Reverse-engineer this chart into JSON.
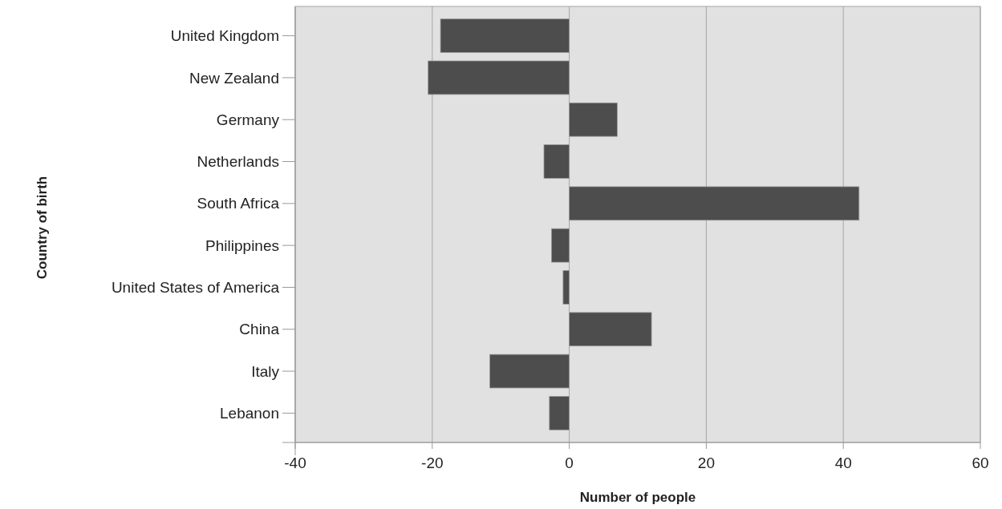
{
  "chart_data": {
    "type": "bar",
    "orientation": "horizontal",
    "xlabel": "Number of people",
    "ylabel": "Country of birth",
    "categories": [
      "United Kingdom",
      "New Zealand",
      "Germany",
      "Netherlands",
      "South Africa",
      "Philippines",
      "United States of America",
      "China",
      "Italy",
      "Lebanon"
    ],
    "values": [
      -18.8,
      -20.6,
      7,
      -3.7,
      42.3,
      -2.6,
      -0.9,
      12,
      -11.6,
      -2.9
    ],
    "color": "#4d4d4d",
    "xlim": [
      -40,
      60
    ],
    "xticks": [
      -40,
      -20,
      0,
      20,
      40,
      60
    ],
    "grid": "x"
  }
}
